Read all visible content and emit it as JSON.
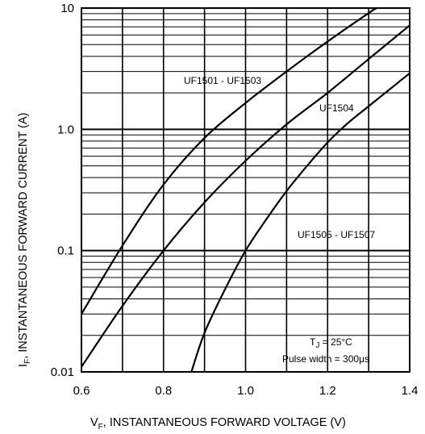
{
  "chart_data": {
    "type": "line",
    "xlabel_main": "V",
    "xlabel_sub": "F",
    "xlabel_rest": ", INSTANTANEOUS FORWARD VOLTAGE (V)",
    "ylabel_main": "I",
    "ylabel_sub": "F",
    "ylabel_rest": ", INSTANTANEOUS FORWARD CURRENT (A)",
    "xlim": [
      0.6,
      1.4
    ],
    "ylim": [
      0.01,
      10
    ],
    "yscale": "log",
    "grid": true,
    "x_ticks": [
      {
        "value": 0.6,
        "label": "0.6"
      },
      {
        "value": 0.8,
        "label": "0.8"
      },
      {
        "value": 1.0,
        "label": "1.0"
      },
      {
        "value": 1.2,
        "label": "1.2"
      },
      {
        "value": 1.4,
        "label": "1.4"
      }
    ],
    "y_ticks": [
      {
        "value": 0.01,
        "label": "0.01"
      },
      {
        "value": 0.1,
        "label": "0.1"
      },
      {
        "value": 1.0,
        "label": "1.0"
      },
      {
        "value": 10,
        "label": "10"
      }
    ],
    "series": [
      {
        "name": "UF1501 - UF1503",
        "points": [
          [
            0.6,
            0.03
          ],
          [
            0.7,
            0.11
          ],
          [
            0.8,
            0.35
          ],
          [
            0.9,
            0.85
          ],
          [
            1.0,
            1.65
          ],
          [
            1.1,
            3.0
          ],
          [
            1.2,
            5.3
          ],
          [
            1.3,
            9.1
          ],
          [
            1.32,
            10
          ]
        ]
      },
      {
        "name": "UF1504",
        "points": [
          [
            0.6,
            0.011
          ],
          [
            0.7,
            0.035
          ],
          [
            0.8,
            0.1
          ],
          [
            0.9,
            0.25
          ],
          [
            1.0,
            0.55
          ],
          [
            1.1,
            1.1
          ],
          [
            1.2,
            2.0
          ],
          [
            1.3,
            3.8
          ],
          [
            1.4,
            7.2
          ]
        ]
      },
      {
        "name": "UF1505 - UF1507",
        "points": [
          [
            0.868,
            0.01
          ],
          [
            0.9,
            0.021
          ],
          [
            0.95,
            0.048
          ],
          [
            1.0,
            0.1
          ],
          [
            1.05,
            0.18
          ],
          [
            1.1,
            0.31
          ],
          [
            1.15,
            0.5
          ],
          [
            1.2,
            0.78
          ],
          [
            1.25,
            1.13
          ],
          [
            1.3,
            1.55
          ],
          [
            1.35,
            2.12
          ],
          [
            1.4,
            2.9
          ]
        ]
      }
    ],
    "annotations": {
      "tj_main": "T",
      "tj_sub": "J",
      "tj_rest": " = 25°C",
      "pulse": "Pulse width = 300μs"
    }
  }
}
